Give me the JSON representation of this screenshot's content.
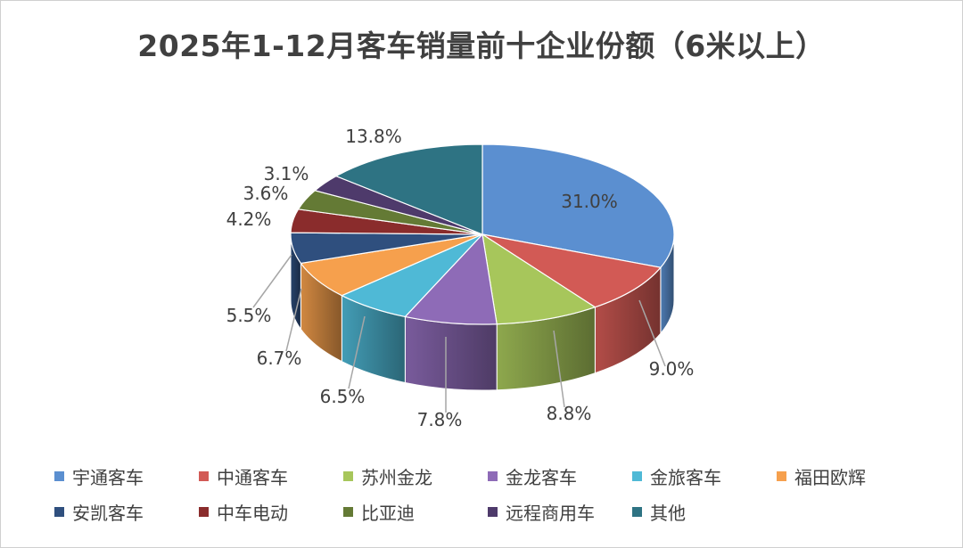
{
  "chart_data": {
    "type": "pie",
    "title": "2025年1-12月客车销量前十企业份额（6米以上）",
    "unit": "%",
    "series": [
      {
        "name": "宇通客车",
        "value": 31.0,
        "label": "31.0%",
        "color": "#5B8FD0"
      },
      {
        "name": "中通客车",
        "value": 9.0,
        "label": "9.0%",
        "color": "#D25A55"
      },
      {
        "name": "苏州金龙",
        "value": 8.8,
        "label": "8.8%",
        "color": "#A7C65B"
      },
      {
        "name": "金龙客车",
        "value": 7.8,
        "label": "7.8%",
        "color": "#8E6BB7"
      },
      {
        "name": "金旅客车",
        "value": 6.5,
        "label": "6.5%",
        "color": "#4FB9D6"
      },
      {
        "name": "福田欧辉",
        "value": 6.7,
        "label": "6.7%",
        "color": "#F6A04D"
      },
      {
        "name": "安凯客车",
        "value": 5.5,
        "label": "5.5%",
        "color": "#2F4F7E"
      },
      {
        "name": "中车电动",
        "value": 4.2,
        "label": "4.2%",
        "color": "#8A2C2C"
      },
      {
        "name": "比亚迪",
        "value": 3.6,
        "label": "3.6%",
        "color": "#647A35"
      },
      {
        "name": "远程商用车",
        "value": 3.1,
        "label": "3.1%",
        "color": "#4E3A6B"
      },
      {
        "name": "其他",
        "value": 13.8,
        "label": "13.8%",
        "color": "#2E7383"
      }
    ],
    "legend_position": "bottom"
  }
}
